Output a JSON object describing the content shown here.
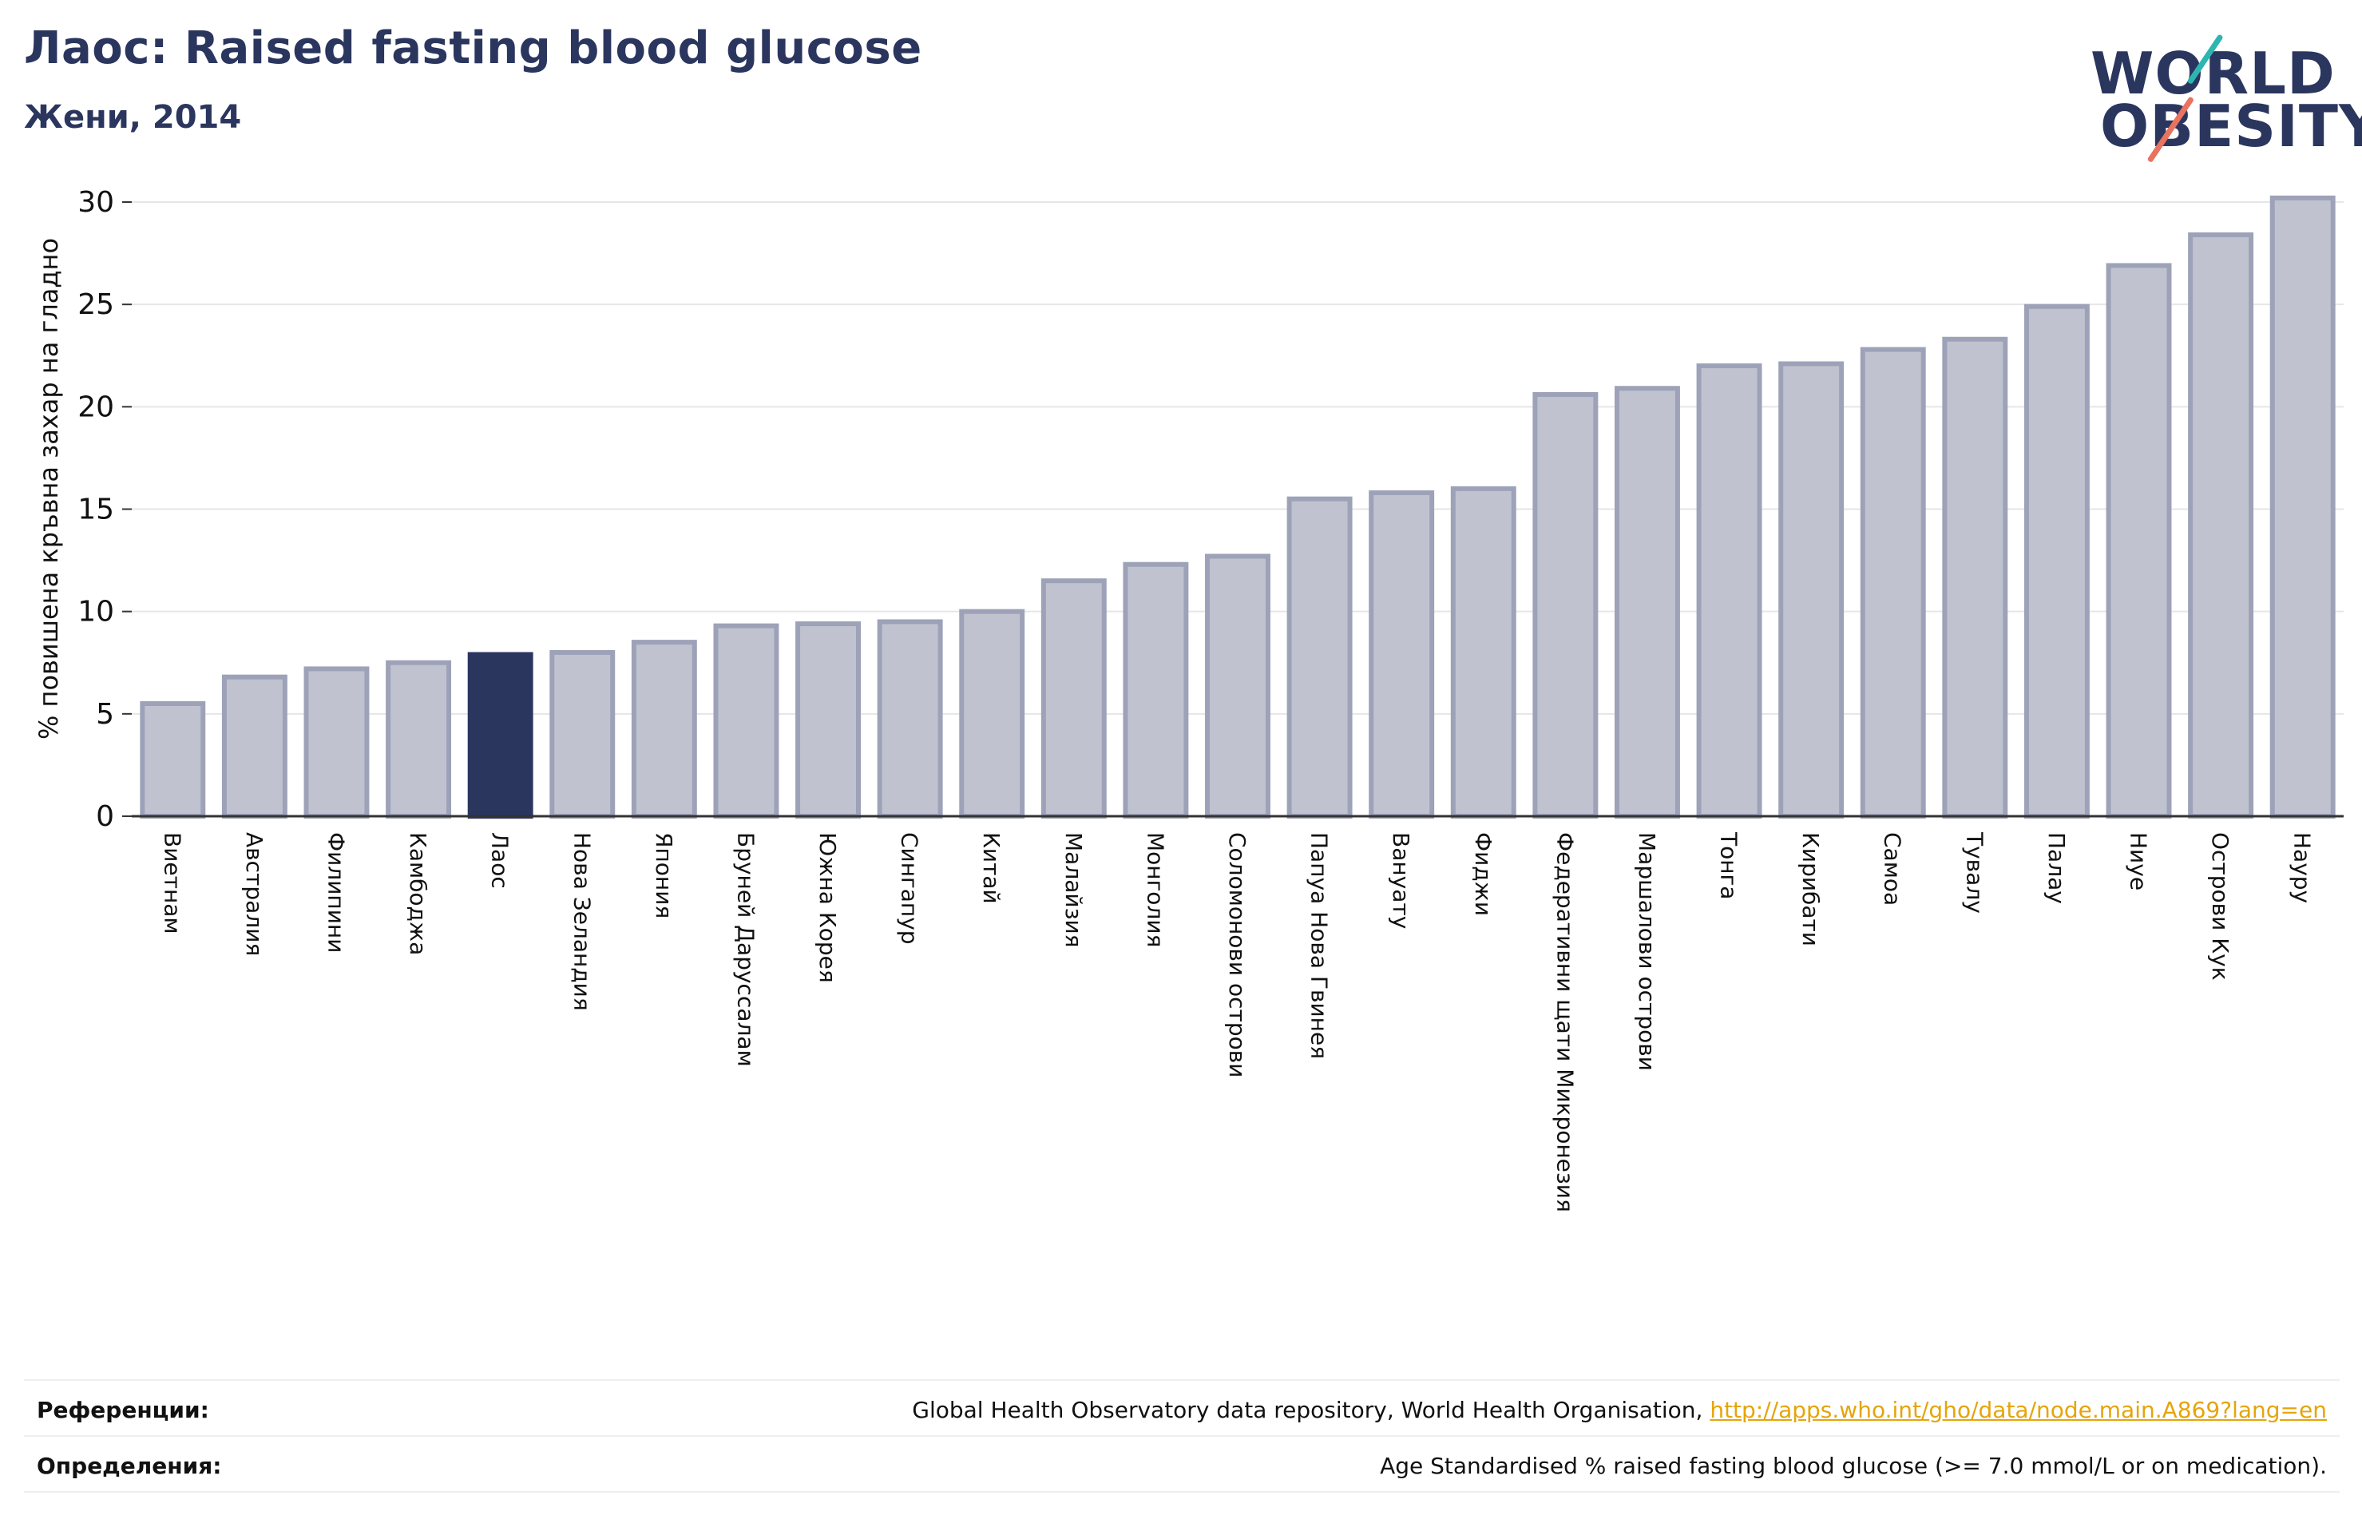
{
  "header": {
    "title": "Лаос: Raised fasting blood glucose",
    "subtitle": "Жени, 2014"
  },
  "logo": {
    "line1": "WORLD",
    "line2": "OBESITY",
    "colors": {
      "text": "#2b365f",
      "slash_top": "#2db5b0",
      "slash_bottom": "#e8735f"
    }
  },
  "chart_data": {
    "type": "bar",
    "title": "Лаос: Raised fasting blood glucose",
    "subtitle": "Жени, 2014",
    "xlabel": "",
    "ylabel": "% повишена кръвна захар на гладно",
    "ylim": [
      0,
      30
    ],
    "yticks": [
      0,
      5,
      10,
      15,
      20,
      25,
      30
    ],
    "grid": true,
    "highlight": "Лаос",
    "colors": {
      "bar": "#c0c3cf",
      "bar_edge": "#9da2b8",
      "highlight": "#2b365f",
      "axis": "#333333",
      "grid": "#e6e6e6"
    },
    "categories": [
      "Виетнам",
      "Австралия",
      "Филипини",
      "Камбоджа",
      "Лаос",
      "Нова Зеландия",
      "Япония",
      "Бруней Даруссалам",
      "Южна Корея",
      "Сингапур",
      "Китай",
      "Малайзия",
      "Монголия",
      "Соломонови острови",
      "Папуа Нова Гвинея",
      "Вануату",
      "Фиджи",
      "Федеративни щати Микронезия",
      "Маршалови острови",
      "Тонга",
      "Кирибати",
      "Самоа",
      "Тувалу",
      "Палау",
      "Ниуе",
      "Острови Кук",
      "Науру"
    ],
    "values": [
      5.5,
      6.8,
      7.2,
      7.5,
      7.9,
      8.0,
      8.5,
      9.3,
      9.4,
      9.5,
      10.0,
      11.5,
      12.3,
      12.7,
      15.5,
      15.8,
      16.0,
      20.6,
      20.9,
      22.0,
      22.1,
      22.8,
      23.3,
      24.9,
      26.9,
      28.4,
      30.2
    ]
  },
  "footer": {
    "references_label": "Референции:",
    "references_text": "Global Health Observatory data repository, World Health Organisation, ",
    "references_link": "http://apps.who.int/gho/data/node.main.A869?lang=en",
    "definitions_label": "Определения:",
    "definitions_text": "Age Standardised % raised fasting blood glucose (>= 7.0 mmol/L or on medication)."
  }
}
